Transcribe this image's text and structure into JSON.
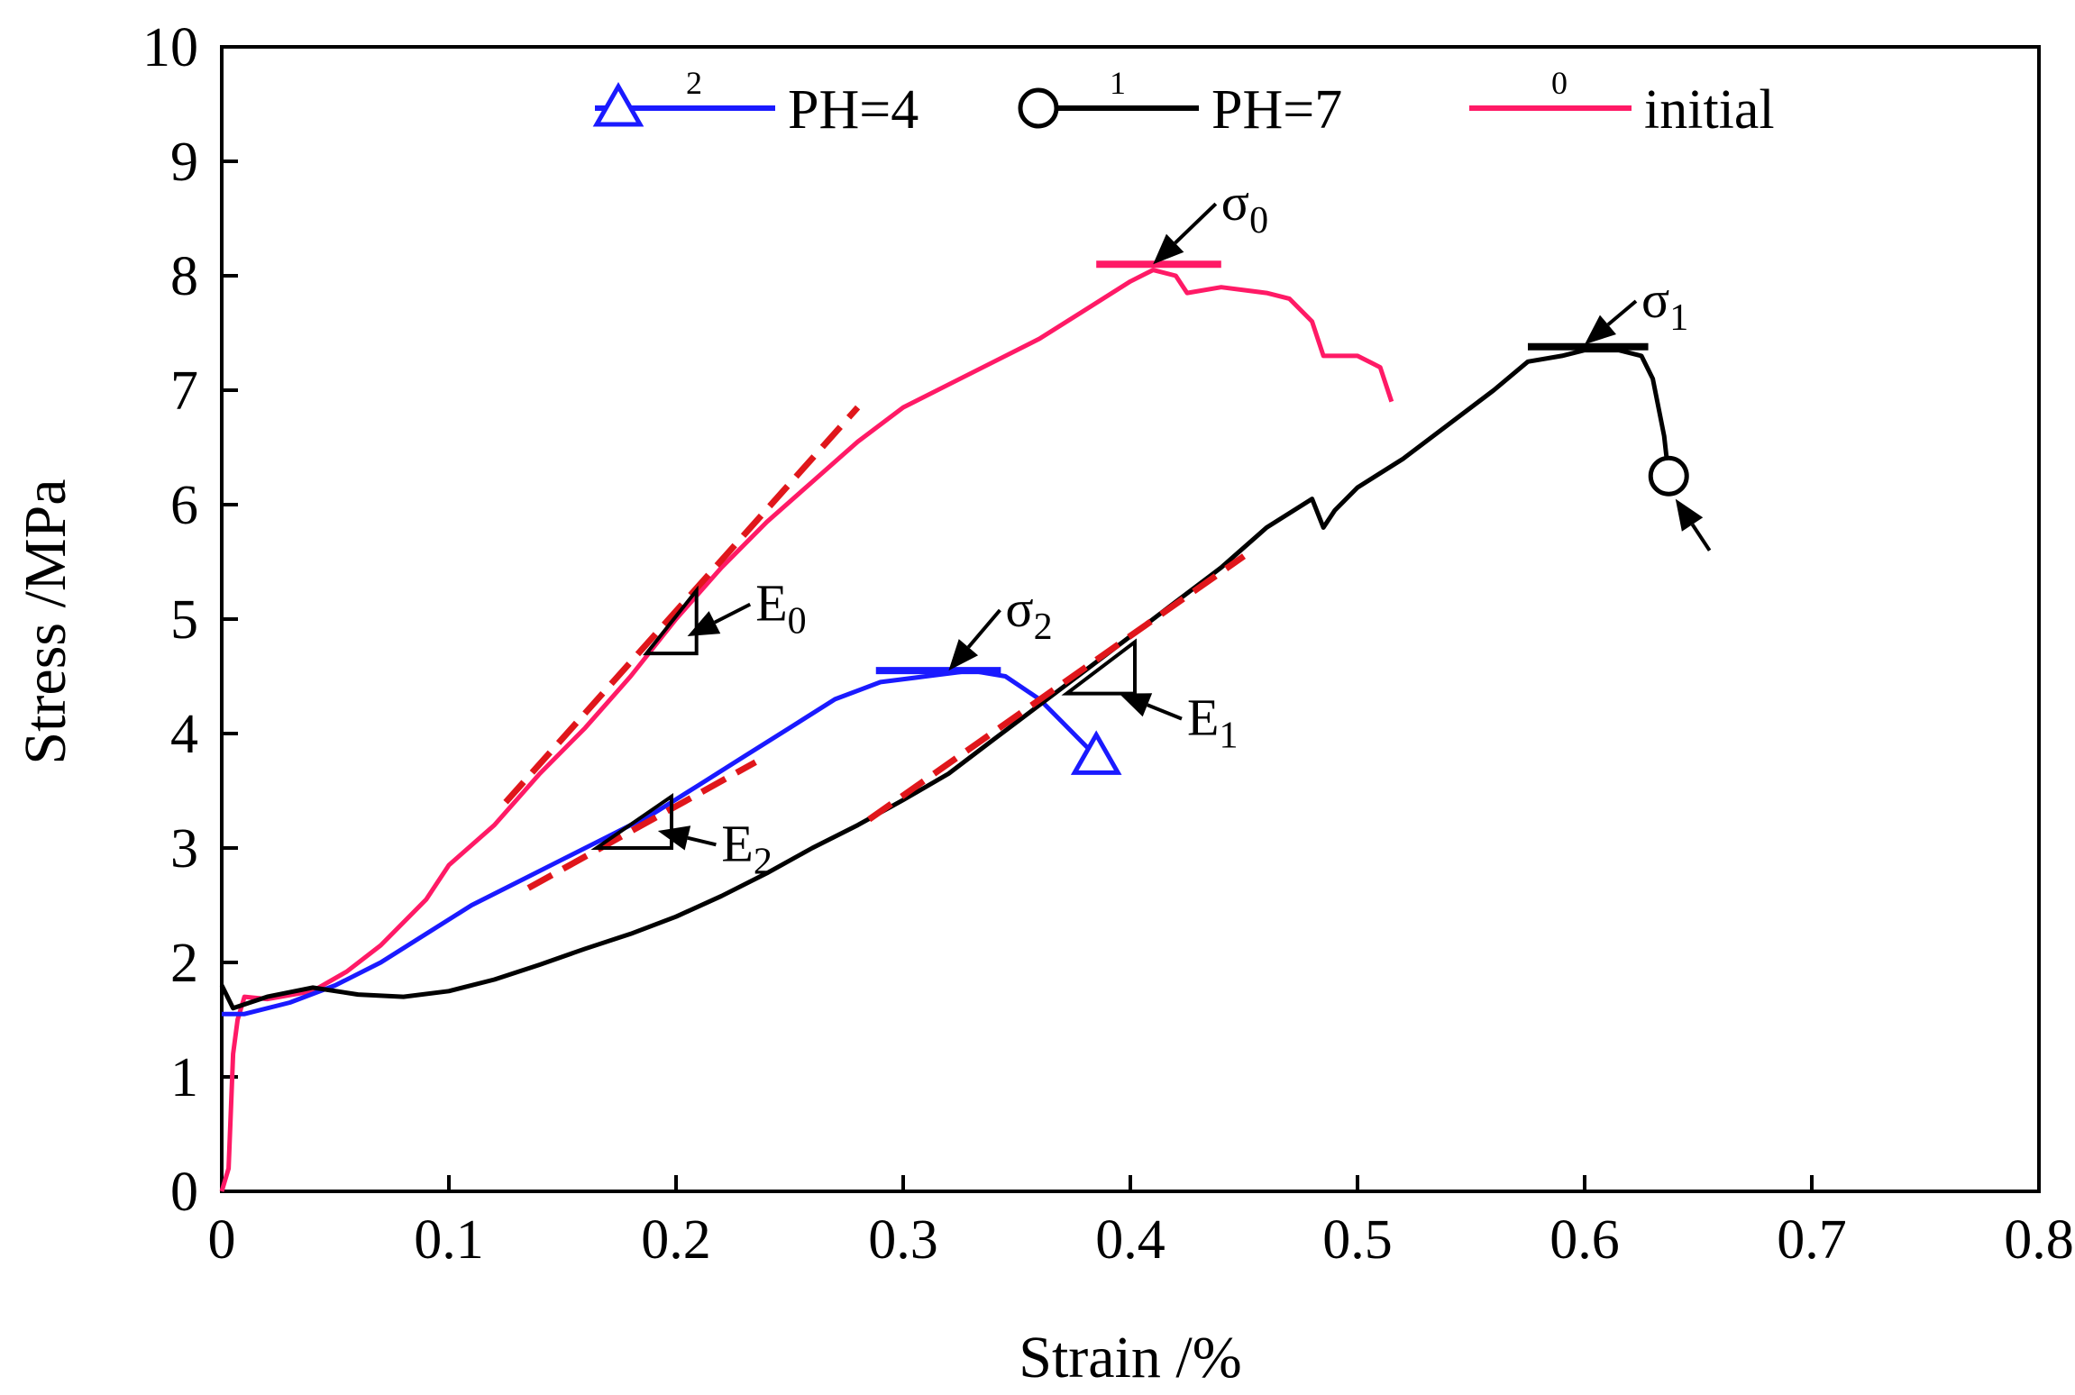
{
  "chart_data": {
    "type": "line",
    "xlabel": "Strain /%",
    "ylabel": "Stress /MPa",
    "xlim": [
      0,
      0.8
    ],
    "ylim": [
      0,
      10
    ],
    "x_ticks": [
      0,
      0.1,
      0.2,
      0.3,
      0.4,
      0.5,
      0.6,
      0.7,
      0.8
    ],
    "x_tick_labels": [
      "0",
      "0.1",
      "0.2",
      "0.3",
      "0.4",
      "0.5",
      "0.6",
      "0.7",
      "0.8"
    ],
    "y_ticks": [
      0,
      1,
      2,
      3,
      4,
      5,
      6,
      7,
      8,
      9,
      10
    ],
    "y_tick_labels": [
      "0",
      "1",
      "2",
      "3",
      "4",
      "5",
      "6",
      "7",
      "8",
      "9",
      "10"
    ],
    "legend": [
      {
        "number": "2",
        "label": "PH=4",
        "color": "#1a1aff",
        "marker": "triangle"
      },
      {
        "number": "1",
        "label": "PH=7",
        "color": "#000000",
        "marker": "circle"
      },
      {
        "number": "0",
        "label": "initial",
        "color": "#ff1a66",
        "marker": "none"
      }
    ],
    "series": [
      {
        "name": "initial",
        "color": "#ff1a66",
        "points": [
          [
            0.0,
            0.0
          ],
          [
            0.003,
            0.2
          ],
          [
            0.005,
            1.2
          ],
          [
            0.007,
            1.5
          ],
          [
            0.01,
            1.7
          ],
          [
            0.02,
            1.68
          ],
          [
            0.04,
            1.75
          ],
          [
            0.055,
            1.92
          ],
          [
            0.07,
            2.15
          ],
          [
            0.09,
            2.55
          ],
          [
            0.1,
            2.85
          ],
          [
            0.12,
            3.2
          ],
          [
            0.14,
            3.65
          ],
          [
            0.16,
            4.05
          ],
          [
            0.18,
            4.5
          ],
          [
            0.2,
            5.0
          ],
          [
            0.22,
            5.45
          ],
          [
            0.24,
            5.85
          ],
          [
            0.26,
            6.2
          ],
          [
            0.28,
            6.55
          ],
          [
            0.3,
            6.85
          ],
          [
            0.32,
            7.05
          ],
          [
            0.34,
            7.25
          ],
          [
            0.36,
            7.45
          ],
          [
            0.38,
            7.7
          ],
          [
            0.4,
            7.95
          ],
          [
            0.41,
            8.05
          ],
          [
            0.42,
            8.0
          ],
          [
            0.425,
            7.85
          ],
          [
            0.44,
            7.9
          ],
          [
            0.46,
            7.85
          ],
          [
            0.47,
            7.8
          ],
          [
            0.48,
            7.6
          ],
          [
            0.485,
            7.3
          ],
          [
            0.5,
            7.3
          ],
          [
            0.51,
            7.2
          ],
          [
            0.515,
            6.9
          ]
        ]
      },
      {
        "name": "PH=4",
        "color": "#1a1aff",
        "marker": "triangle",
        "points": [
          [
            0.0,
            1.55
          ],
          [
            0.01,
            1.55
          ],
          [
            0.03,
            1.65
          ],
          [
            0.05,
            1.8
          ],
          [
            0.07,
            2.0
          ],
          [
            0.09,
            2.25
          ],
          [
            0.11,
            2.5
          ],
          [
            0.13,
            2.7
          ],
          [
            0.15,
            2.9
          ],
          [
            0.17,
            3.1
          ],
          [
            0.19,
            3.3
          ],
          [
            0.21,
            3.55
          ],
          [
            0.23,
            3.8
          ],
          [
            0.25,
            4.05
          ],
          [
            0.27,
            4.3
          ],
          [
            0.29,
            4.45
          ],
          [
            0.31,
            4.5
          ],
          [
            0.33,
            4.55
          ],
          [
            0.345,
            4.5
          ],
          [
            0.36,
            4.3
          ],
          [
            0.37,
            4.1
          ],
          [
            0.38,
            3.9
          ],
          [
            0.385,
            3.8
          ]
        ]
      },
      {
        "name": "PH=7",
        "color": "#000000",
        "marker": "circle",
        "points": [
          [
            0.0,
            1.8
          ],
          [
            0.005,
            1.6
          ],
          [
            0.02,
            1.7
          ],
          [
            0.04,
            1.78
          ],
          [
            0.06,
            1.72
          ],
          [
            0.08,
            1.7
          ],
          [
            0.1,
            1.75
          ],
          [
            0.12,
            1.85
          ],
          [
            0.14,
            1.98
          ],
          [
            0.16,
            2.12
          ],
          [
            0.18,
            2.25
          ],
          [
            0.2,
            2.4
          ],
          [
            0.22,
            2.58
          ],
          [
            0.24,
            2.78
          ],
          [
            0.26,
            3.0
          ],
          [
            0.28,
            3.2
          ],
          [
            0.3,
            3.42
          ],
          [
            0.32,
            3.65
          ],
          [
            0.34,
            3.95
          ],
          [
            0.36,
            4.25
          ],
          [
            0.38,
            4.55
          ],
          [
            0.4,
            4.85
          ],
          [
            0.42,
            5.15
          ],
          [
            0.44,
            5.45
          ],
          [
            0.46,
            5.8
          ],
          [
            0.48,
            6.05
          ],
          [
            0.485,
            5.8
          ],
          [
            0.49,
            5.95
          ],
          [
            0.5,
            6.15
          ],
          [
            0.52,
            6.4
          ],
          [
            0.54,
            6.7
          ],
          [
            0.56,
            7.0
          ],
          [
            0.575,
            7.25
          ],
          [
            0.59,
            7.3
          ],
          [
            0.6,
            7.35
          ],
          [
            0.615,
            7.35
          ],
          [
            0.625,
            7.3
          ],
          [
            0.63,
            7.1
          ],
          [
            0.635,
            6.6
          ],
          [
            0.637,
            6.25
          ]
        ]
      }
    ],
    "fit_lines": [
      {
        "series": "initial",
        "color": "#e0161b",
        "from": [
          0.125,
          3.4
        ],
        "to": [
          0.28,
          6.85
        ]
      },
      {
        "series": "PH=4",
        "color": "#e0161b",
        "from": [
          0.135,
          2.65
        ],
        "to": [
          0.235,
          3.75
        ]
      },
      {
        "series": "PH=7",
        "color": "#e0161b",
        "from": [
          0.285,
          3.25
        ],
        "to": [
          0.45,
          5.55
        ]
      }
    ],
    "peak_lines": [
      {
        "series": "initial",
        "color": "#ff1a66",
        "y": 8.1,
        "x_from": 0.385,
        "x_to": 0.44
      },
      {
        "series": "PH=7",
        "color": "#000000",
        "y": 7.38,
        "x_from": 0.575,
        "x_to": 0.628
      },
      {
        "series": "PH=4",
        "color": "#1a1aff",
        "y": 4.55,
        "x_from": 0.288,
        "x_to": 0.343
      }
    ],
    "annotations": [
      {
        "text": "σ",
        "sub": "0",
        "label_at": [
          0.44,
          8.55
        ],
        "arrow_to": [
          0.41,
          8.1
        ]
      },
      {
        "text": "σ",
        "sub": "1",
        "label_at": [
          0.625,
          7.7
        ],
        "arrow_to": [
          0.6,
          7.4
        ]
      },
      {
        "text": "σ",
        "sub": "2",
        "label_at": [
          0.345,
          5.0
        ],
        "arrow_to": [
          0.32,
          4.55
        ]
      },
      {
        "text": "E",
        "sub": "0",
        "label_at": [
          0.235,
          5.05
        ],
        "arrow_to": [
          0.205,
          4.85
        ]
      },
      {
        "text": "E",
        "sub": "1",
        "label_at": [
          0.425,
          4.05
        ],
        "arrow_to": [
          0.395,
          4.35
        ]
      },
      {
        "text": "E",
        "sub": "2",
        "label_at": [
          0.22,
          2.95
        ],
        "arrow_to": [
          0.192,
          3.15
        ]
      }
    ],
    "endpoint_arrow": {
      "series": "PH=7",
      "from": [
        0.655,
        5.6
      ],
      "to": [
        0.64,
        6.05
      ]
    },
    "slope_triangles": [
      {
        "series": "initial",
        "points": [
          [
            0.187,
            4.7
          ],
          [
            0.209,
            4.7
          ],
          [
            0.209,
            5.25
          ]
        ]
      },
      {
        "series": "PH=4",
        "points": [
          [
            0.165,
            3.0
          ],
          [
            0.198,
            3.0
          ],
          [
            0.198,
            3.45
          ]
        ]
      },
      {
        "series": "PH=7",
        "points": [
          [
            0.372,
            4.35
          ],
          [
            0.402,
            4.35
          ],
          [
            0.402,
            4.8
          ]
        ]
      }
    ]
  }
}
